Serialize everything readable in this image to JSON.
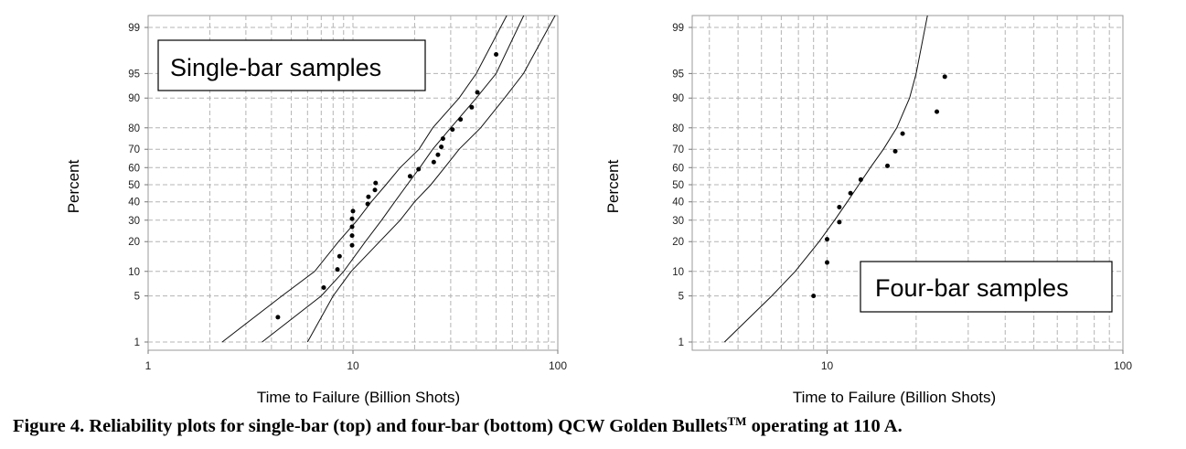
{
  "caption": {
    "text": "Figure 4.  Reliability plots for single-bar (top) and four-bar (bottom) QCW Golden Bullets",
    "superscript": "TM",
    "suffix": " operating at  110 A."
  },
  "chart_data": [
    {
      "type": "scatter",
      "scale": "lognormal-probability",
      "annotation": "Single-bar samples",
      "xlabel": "Time to Failure (Billion Shots)",
      "ylabel": "Percent",
      "x_scale": "log",
      "xlim": [
        1,
        100
      ],
      "x_ticks": [
        1,
        10,
        100
      ],
      "y_ticks": [
        1,
        5,
        10,
        20,
        30,
        40,
        50,
        60,
        70,
        80,
        90,
        95,
        99
      ],
      "grid": true,
      "points": [
        {
          "x": 4.3,
          "y": 2.5
        },
        {
          "x": 7.2,
          "y": 6.4
        },
        {
          "x": 8.4,
          "y": 10.5
        },
        {
          "x": 8.6,
          "y": 14.5
        },
        {
          "x": 9.9,
          "y": 18.5
        },
        {
          "x": 9.9,
          "y": 22.6
        },
        {
          "x": 9.9,
          "y": 26.7
        },
        {
          "x": 9.9,
          "y": 30.7
        },
        {
          "x": 10.0,
          "y": 34.8
        },
        {
          "x": 11.8,
          "y": 38.8
        },
        {
          "x": 11.9,
          "y": 42.9
        },
        {
          "x": 12.8,
          "y": 46.9
        },
        {
          "x": 12.9,
          "y": 51.0
        },
        {
          "x": 19.0,
          "y": 55.0
        },
        {
          "x": 20.9,
          "y": 59.1
        },
        {
          "x": 24.8,
          "y": 63.1
        },
        {
          "x": 26.0,
          "y": 67.1
        },
        {
          "x": 27.0,
          "y": 71.2
        },
        {
          "x": 27.5,
          "y": 75.2
        },
        {
          "x": 30.6,
          "y": 79.3
        },
        {
          "x": 33.5,
          "y": 83.3
        },
        {
          "x": 38.0,
          "y": 87.4
        },
        {
          "x": 40.5,
          "y": 91.4
        },
        {
          "x": 50.0,
          "y": 97.3
        }
      ],
      "confidence_bounds": {
        "upper": [
          {
            "x": 2.3,
            "y": 1
          },
          {
            "x": 4.5,
            "y": 5
          },
          {
            "x": 6.5,
            "y": 10
          },
          {
            "x": 8.5,
            "y": 20
          },
          {
            "x": 10.5,
            "y": 30
          },
          {
            "x": 12.3,
            "y": 40
          },
          {
            "x": 14.5,
            "y": 50
          },
          {
            "x": 17.0,
            "y": 60
          },
          {
            "x": 21.0,
            "y": 70
          },
          {
            "x": 24.5,
            "y": 80
          },
          {
            "x": 33.0,
            "y": 90
          },
          {
            "x": 40.0,
            "y": 95
          },
          {
            "x": 58.0,
            "y": 99.5
          }
        ],
        "fit": [
          {
            "x": 3.6,
            "y": 1
          },
          {
            "x": 7.0,
            "y": 5
          },
          {
            "x": 9.0,
            "y": 10
          },
          {
            "x": 11.5,
            "y": 20
          },
          {
            "x": 13.8,
            "y": 30
          },
          {
            "x": 16.0,
            "y": 40
          },
          {
            "x": 18.4,
            "y": 50
          },
          {
            "x": 21.2,
            "y": 60
          },
          {
            "x": 24.5,
            "y": 70
          },
          {
            "x": 30.0,
            "y": 80
          },
          {
            "x": 40.0,
            "y": 90
          },
          {
            "x": 50.0,
            "y": 95
          },
          {
            "x": 70.0,
            "y": 99.5
          }
        ],
        "lower": [
          {
            "x": 6.0,
            "y": 1
          },
          {
            "x": 8.0,
            "y": 5
          },
          {
            "x": 9.8,
            "y": 10
          },
          {
            "x": 13.5,
            "y": 20
          },
          {
            "x": 17.0,
            "y": 30
          },
          {
            "x": 20.0,
            "y": 40
          },
          {
            "x": 24.0,
            "y": 50
          },
          {
            "x": 28.0,
            "y": 60
          },
          {
            "x": 33.0,
            "y": 70
          },
          {
            "x": 42.0,
            "y": 80
          },
          {
            "x": 55.0,
            "y": 90
          },
          {
            "x": 68.0,
            "y": 95
          },
          {
            "x": 100.0,
            "y": 99.5
          }
        ]
      }
    },
    {
      "type": "scatter",
      "scale": "lognormal-probability",
      "annotation": "Four-bar samples",
      "xlabel": "Time to Failure (Billion Shots)",
      "ylabel": "Percent",
      "x_scale": "log",
      "xlim": [
        3.5,
        100
      ],
      "x_ticks": [
        10,
        100
      ],
      "y_ticks": [
        1,
        5,
        10,
        20,
        30,
        40,
        50,
        60,
        70,
        80,
        90,
        95,
        99
      ],
      "grid": true,
      "points": [
        {
          "x": 9.0,
          "y": 5.0
        },
        {
          "x": 10.0,
          "y": 12.5
        },
        {
          "x": 10.0,
          "y": 21.0
        },
        {
          "x": 11.0,
          "y": 29.0
        },
        {
          "x": 11.0,
          "y": 37.0
        },
        {
          "x": 12.0,
          "y": 45.0
        },
        {
          "x": 13.0,
          "y": 53.0
        },
        {
          "x": 16.0,
          "y": 61.0
        },
        {
          "x": 17.0,
          "y": 69.0
        },
        {
          "x": 18.0,
          "y": 77.5
        },
        {
          "x": 23.5,
          "y": 86.0
        },
        {
          "x": 25.0,
          "y": 94.5
        }
      ],
      "confidence_bounds": {
        "upper": [
          {
            "x": 4.5,
            "y": 1
          },
          {
            "x": 6.5,
            "y": 5
          },
          {
            "x": 7.8,
            "y": 10
          },
          {
            "x": 9.4,
            "y": 20
          },
          {
            "x": 10.6,
            "y": 30
          },
          {
            "x": 11.7,
            "y": 40
          },
          {
            "x": 12.8,
            "y": 50
          },
          {
            "x": 14.0,
            "y": 60
          },
          {
            "x": 15.5,
            "y": 70
          },
          {
            "x": 17.2,
            "y": 80
          },
          {
            "x": 19.0,
            "y": 90
          },
          {
            "x": 20.0,
            "y": 95
          },
          {
            "x": 22.0,
            "y": 99.5
          }
        ]
      }
    }
  ]
}
